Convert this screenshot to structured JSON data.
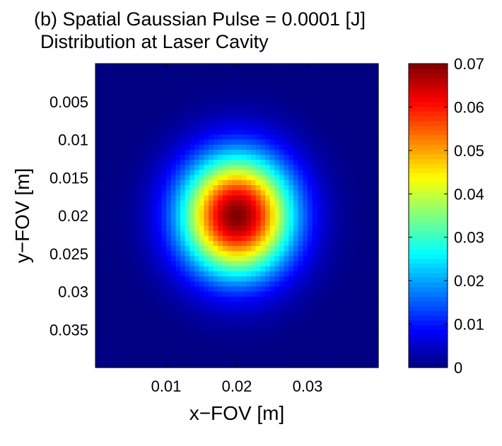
{
  "chart_data": {
    "type": "heatmap",
    "title_lines": [
      "(b) Spatial Gaussian Pulse = 0.0001 [J]",
      "Distribution at Laser Cavity"
    ],
    "xlabel": "x−FOV [m]",
    "ylabel": "y−FOV [m]",
    "xlim": [
      0.0,
      0.04
    ],
    "ylim": [
      0.0,
      0.04
    ],
    "y_axis_direction": "reversed",
    "xticks": [
      0.01,
      0.02,
      0.03
    ],
    "xtick_labels": [
      "0.01",
      "0.02",
      "0.03"
    ],
    "yticks": [
      0.005,
      0.01,
      0.015,
      0.02,
      0.025,
      0.03,
      0.035
    ],
    "ytick_labels": [
      "0.005",
      "0.01",
      "0.015",
      "0.02",
      "0.025",
      "0.03",
      "0.035"
    ],
    "field": {
      "kind": "gaussian",
      "center": [
        0.02,
        0.02
      ],
      "peak": 0.07,
      "sigma": 0.0055,
      "grid": 60
    },
    "colorbar": {
      "colormap": "jet",
      "range": [
        0,
        0.07
      ],
      "ticks": [
        0,
        0.01,
        0.02,
        0.03,
        0.04,
        0.05,
        0.06,
        0.07
      ],
      "tick_labels": [
        "0",
        "0.01",
        "0.02",
        "0.03",
        "0.04",
        "0.05",
        "0.06",
        "0.07"
      ],
      "location": "right"
    },
    "grid": false
  }
}
